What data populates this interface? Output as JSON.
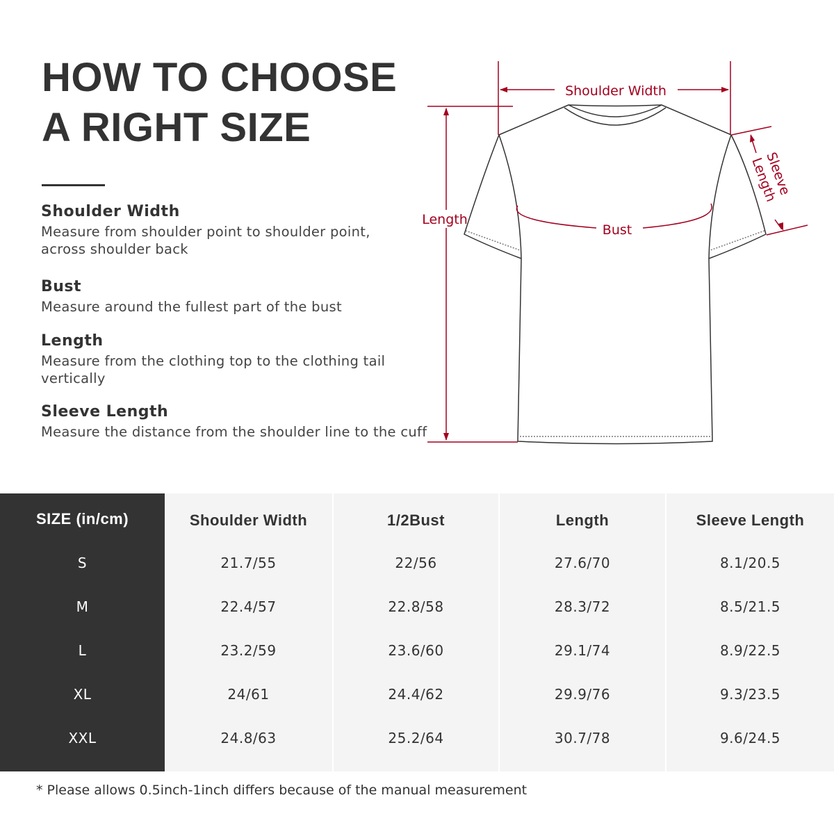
{
  "heading": {
    "line1": "HOW TO CHOOSE",
    "line2": "A RIGHT SIZE"
  },
  "measures": [
    {
      "title": "Shoulder Width",
      "text": "Measure from shoulder point to shoulder point, across shoulder back"
    },
    {
      "title": "Bust",
      "text": "Measure around the fullest part of the bust"
    },
    {
      "title": "Length",
      "text": "Measure from the clothing top to the clothing tail vertically"
    },
    {
      "title": "Sleeve Length",
      "text": "Measure the distance from the shoulder line to the cuff"
    }
  ],
  "diagram": {
    "accent_color": "#a3001e",
    "labels": {
      "shoulder": "Shoulder Width",
      "length": "Length",
      "bust": "Bust",
      "sleeve1": "Sleeve",
      "sleeve2": "Length"
    }
  },
  "table": {
    "headers": [
      "SIZE  (in/cm)",
      "Shoulder Width",
      "1/2Bust",
      "Length",
      "Sleeve Length"
    ],
    "rows": [
      [
        "S",
        "21.7/55",
        "22/56",
        "27.6/70",
        "8.1/20.5"
      ],
      [
        "M",
        "22.4/57",
        "22.8/58",
        "28.3/72",
        "8.5/21.5"
      ],
      [
        "L",
        "23.2/59",
        "23.6/60",
        "29.1/74",
        "8.9/22.5"
      ],
      [
        "XL",
        "24/61",
        "24.4/62",
        "29.9/76",
        "9.3/23.5"
      ],
      [
        "XXL",
        "24.8/63",
        "25.2/64",
        "30.7/78",
        "9.6/24.5"
      ]
    ]
  },
  "note": "* Please allows 0.5inch-1inch differs because of the  manual measurement"
}
